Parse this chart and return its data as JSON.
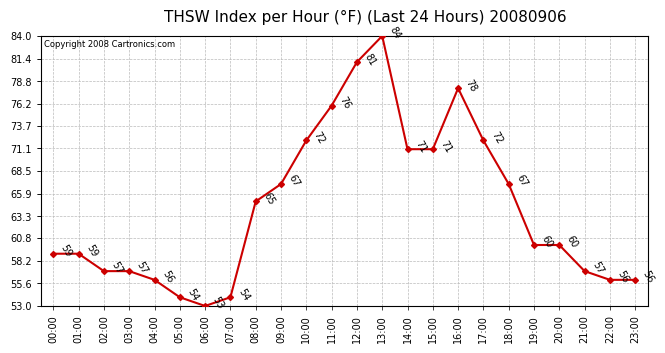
{
  "title": "THSW Index per Hour (°F) (Last 24 Hours) 20080906",
  "copyright": "Copyright 2008 Cartronics.com",
  "hours": [
    "00:00",
    "01:00",
    "02:00",
    "03:00",
    "04:00",
    "05:00",
    "06:00",
    "07:00",
    "08:00",
    "09:00",
    "10:00",
    "11:00",
    "12:00",
    "13:00",
    "14:00",
    "15:00",
    "16:00",
    "17:00",
    "18:00",
    "19:00",
    "20:00",
    "21:00",
    "22:00",
    "23:00"
  ],
  "values": [
    59,
    59,
    57,
    57,
    56,
    54,
    53,
    54,
    65,
    67,
    72,
    76,
    81,
    84,
    71,
    71,
    78,
    72,
    67,
    60,
    60,
    57,
    56,
    56
  ],
  "line_color": "#cc0000",
  "marker_color": "#cc0000",
  "bg_color": "#ffffff",
  "grid_color": "#bbbbbb",
  "ylim_min": 53.0,
  "ylim_max": 84.0,
  "yticks": [
    53.0,
    55.6,
    58.2,
    60.8,
    63.3,
    65.9,
    68.5,
    71.1,
    73.7,
    76.2,
    78.8,
    81.4,
    84.0
  ],
  "title_fontsize": 11,
  "tick_fontsize": 7,
  "annotation_fontsize": 7,
  "copyright_fontsize": 6
}
